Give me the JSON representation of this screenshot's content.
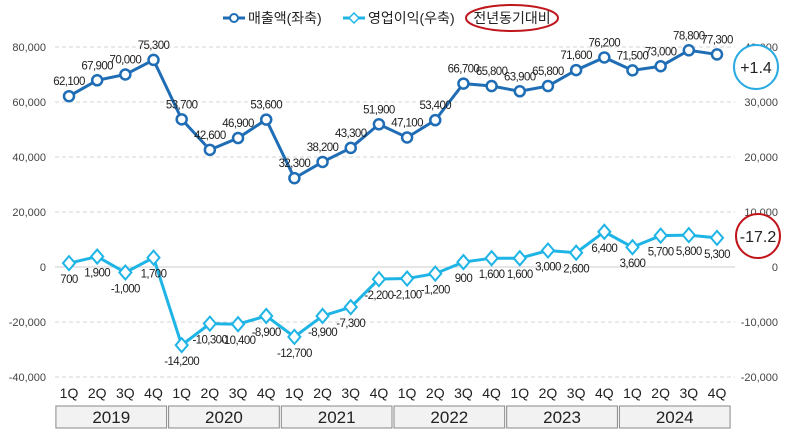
{
  "chart_data": {
    "type": "line",
    "legend": {
      "placement": "top",
      "badge": "전년동기대비"
    },
    "years": [
      "2019",
      "2020",
      "2021",
      "2022",
      "2023",
      "2024"
    ],
    "quarters": [
      "1Q",
      "2Q",
      "3Q",
      "4Q"
    ],
    "left_axis": {
      "ylim": [
        -40000,
        80000
      ],
      "ticks": [
        "80,000",
        "60,000",
        "40,000",
        "20,000",
        "0",
        "-20,000",
        "-40,000"
      ]
    },
    "right_axis": {
      "ylim": [
        -20000,
        40000
      ],
      "ticks": [
        "40,000",
        "30,000",
        "20,000",
        "10,000",
        "0",
        "-10,000",
        "-20,000"
      ]
    },
    "grid": true,
    "series": [
      {
        "name": "매출액(좌축)",
        "axis": "left",
        "color": "#1f6db5",
        "values": [
          62100,
          67900,
          70000,
          75300,
          53700,
          42600,
          46900,
          53600,
          32300,
          38200,
          43300,
          51900,
          47100,
          53400,
          66700,
          65800,
          63900,
          65800,
          71600,
          76200,
          71500,
          73000,
          78800,
          77300
        ],
        "labels": [
          "62,100",
          "67,900",
          "70,000",
          "75,300",
          "53,700",
          "42,600",
          "46,900",
          "53,600",
          "32,300",
          "38,200",
          "43,300",
          "51,900",
          "47,100",
          "53,400",
          "66,700",
          "65,800",
          "63,900",
          "65,800",
          "71,600",
          "76,200",
          "71,500",
          "73,000",
          "78,800",
          "77,300"
        ],
        "yoy": "+1.4",
        "yoy_color": "#29abe2"
      },
      {
        "name": "영업이익(우축)",
        "axis": "right",
        "color": "#1fb4e6",
        "values": [
          700,
          1900,
          -1000,
          1700,
          -14200,
          -10300,
          -10400,
          -8900,
          -12700,
          -8900,
          -7300,
          -2200,
          -2100,
          -1200,
          900,
          1600,
          1600,
          3000,
          2600,
          6400,
          3600,
          5700,
          5800,
          5300
        ],
        "labels": [
          "700",
          "1,900",
          "-1,000",
          "1,700",
          "-14,200",
          "-10,300",
          "-10,400",
          "-8,900",
          "-12,700",
          "-8,900",
          "-7,300",
          "-2,200",
          "-2,100",
          "-1,200",
          "900",
          "1,600",
          "1,600",
          "3,000",
          "2,600",
          "6,400",
          "3,600",
          "5,700",
          "5,800",
          "5,300"
        ],
        "yoy": "-17.2",
        "yoy_color": "#c0161b"
      }
    ]
  }
}
